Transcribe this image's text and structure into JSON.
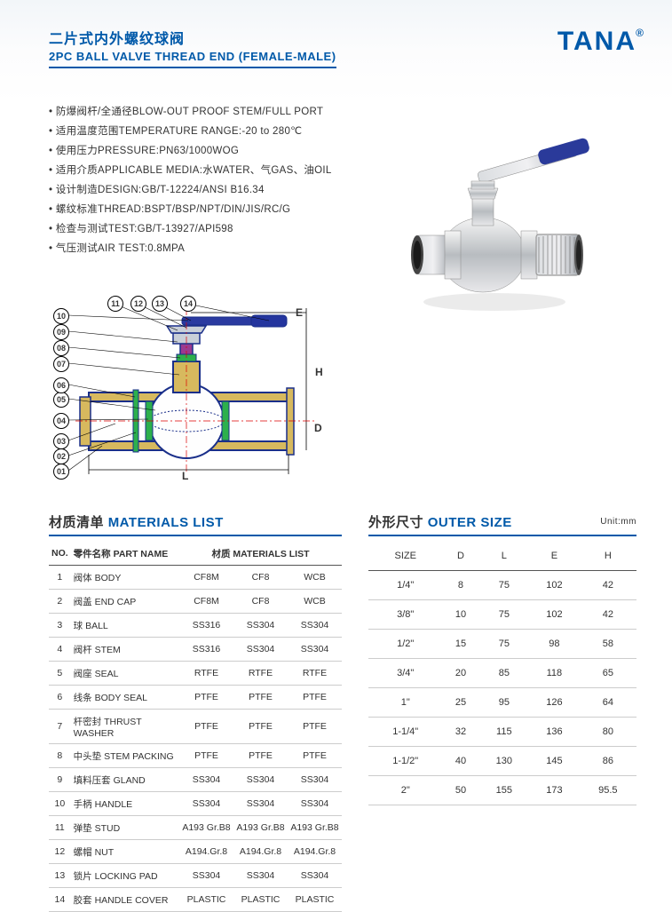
{
  "header": {
    "title_cn": "二片式内外螺纹球阀",
    "title_en": "2PC BALL VALVE THREAD END (FEMALE-MALE)",
    "brand": "TANA"
  },
  "specs": [
    "防爆阀杆/全通径BLOW-OUT PROOF STEM/FULL  PORT",
    "适用温度范围TEMPERATURE RANGE:-20 to 280℃",
    "使用压力PRESSURE:PN63/1000WOG",
    "适用介质APPLICABLE MEDIA:水WATER、气GAS、油OIL",
    "设计制造DESIGN:GB/T-12224/ANSI B16.34",
    "螺纹标准THREAD:BSPT/BSP/NPT/DIN/JIS/RC/G",
    "检查与测试TEST:GB/T-13927/API598",
    "气压测试AIR TEST:0.8MPA"
  ],
  "diagram": {
    "callouts": [
      "01",
      "02",
      "03",
      "04",
      "05",
      "06",
      "07",
      "08",
      "09",
      "10",
      "11",
      "12",
      "13",
      "14"
    ],
    "call_pos": [
      {
        "l": 5,
        "t": 215
      },
      {
        "l": 5,
        "t": 198
      },
      {
        "l": 5,
        "t": 181
      },
      {
        "l": 5,
        "t": 158
      },
      {
        "l": 5,
        "t": 134
      },
      {
        "l": 5,
        "t": 118
      },
      {
        "l": 5,
        "t": 94
      },
      {
        "l": 5,
        "t": 76
      },
      {
        "l": 5,
        "t": 58
      },
      {
        "l": 5,
        "t": 40
      },
      {
        "l": 66,
        "t": 26
      },
      {
        "l": 92,
        "t": 26
      },
      {
        "l": 116,
        "t": 26
      },
      {
        "l": 148,
        "t": 26
      }
    ],
    "dims": {
      "E": "E",
      "H": "H",
      "D": "D",
      "L": "L"
    },
    "colors": {
      "body": "#d7b95e",
      "body_stroke": "#1a2f8a",
      "ball": "#fefefe",
      "seat": "#2db04c",
      "stem": "#9b3a90",
      "handle_bar": "#2a3aa0",
      "handle_grip": "#24359e",
      "nut": "#c9cfd8"
    },
    "dim_pos": {
      "E": {
        "l": 278,
        "t": 38
      },
      "H": {
        "l": 300,
        "t": 105
      },
      "D": {
        "l": 299,
        "t": 168
      },
      "L": {
        "l": 150,
        "t": 222
      }
    }
  },
  "materials": {
    "title_cn": "材质清单",
    "title_en": "MATERIALS LIST",
    "head_no": "NO.",
    "head_part": "零件名称 PART NAME",
    "head_mat": "材质 MATERIALS LIST",
    "rows": [
      [
        "1",
        "阀体 BODY",
        "CF8M",
        "CF8",
        "WCB"
      ],
      [
        "2",
        "阀盖 END CAP",
        "CF8M",
        "CF8",
        "WCB"
      ],
      [
        "3",
        "球 BALL",
        "SS316",
        "SS304",
        "SS304"
      ],
      [
        "4",
        "阀杆 STEM",
        "SS316",
        "SS304",
        "SS304"
      ],
      [
        "5",
        "阀座 SEAL",
        "RTFE",
        "RTFE",
        "RTFE"
      ],
      [
        "6",
        "线条 BODY SEAL",
        "PTFE",
        "PTFE",
        "PTFE"
      ],
      [
        "7",
        "杆密封 THRUST WASHER",
        "PTFE",
        "PTFE",
        "PTFE"
      ],
      [
        "8",
        "中头垫 STEM PACKING",
        "PTFE",
        "PTFE",
        "PTFE"
      ],
      [
        "9",
        "填料压套 GLAND",
        "SS304",
        "SS304",
        "SS304"
      ],
      [
        "10",
        "手柄 HANDLE",
        "SS304",
        "SS304",
        "SS304"
      ],
      [
        "11",
        "弹垫 STUD",
        "A193 Gr.B8",
        "A193 Gr.B8",
        "A193 Gr.B8"
      ],
      [
        "12",
        "螺帽 NUT",
        "A194.Gr.8",
        "A194.Gr.8",
        "A194.Gr.8"
      ],
      [
        "13",
        "锁片 LOCKING PAD",
        "SS304",
        "SS304",
        "SS304"
      ],
      [
        "14",
        "胶套 HANDLE COVER",
        "PLASTIC",
        "PLASTIC",
        "PLASTIC"
      ]
    ]
  },
  "outer_size": {
    "title_cn": "外形尺寸",
    "title_en": "OUTER SIZE",
    "unit": "Unit:mm",
    "head": [
      "SIZE",
      "D",
      "L",
      "E",
      "H"
    ],
    "rows": [
      [
        "1/4\"",
        "8",
        "75",
        "102",
        "42"
      ],
      [
        "3/8\"",
        "10",
        "75",
        "102",
        "42"
      ],
      [
        "1/2\"",
        "15",
        "75",
        "98",
        "58"
      ],
      [
        "3/4\"",
        "20",
        "85",
        "118",
        "65"
      ],
      [
        "1\"",
        "25",
        "95",
        "126",
        "64"
      ],
      [
        "1-1/4\"",
        "32",
        "115",
        "136",
        "80"
      ],
      [
        "1-1/2\"",
        "40",
        "130",
        "145",
        "86"
      ],
      [
        "2\"",
        "50",
        "155",
        "173",
        "95.5"
      ]
    ]
  }
}
